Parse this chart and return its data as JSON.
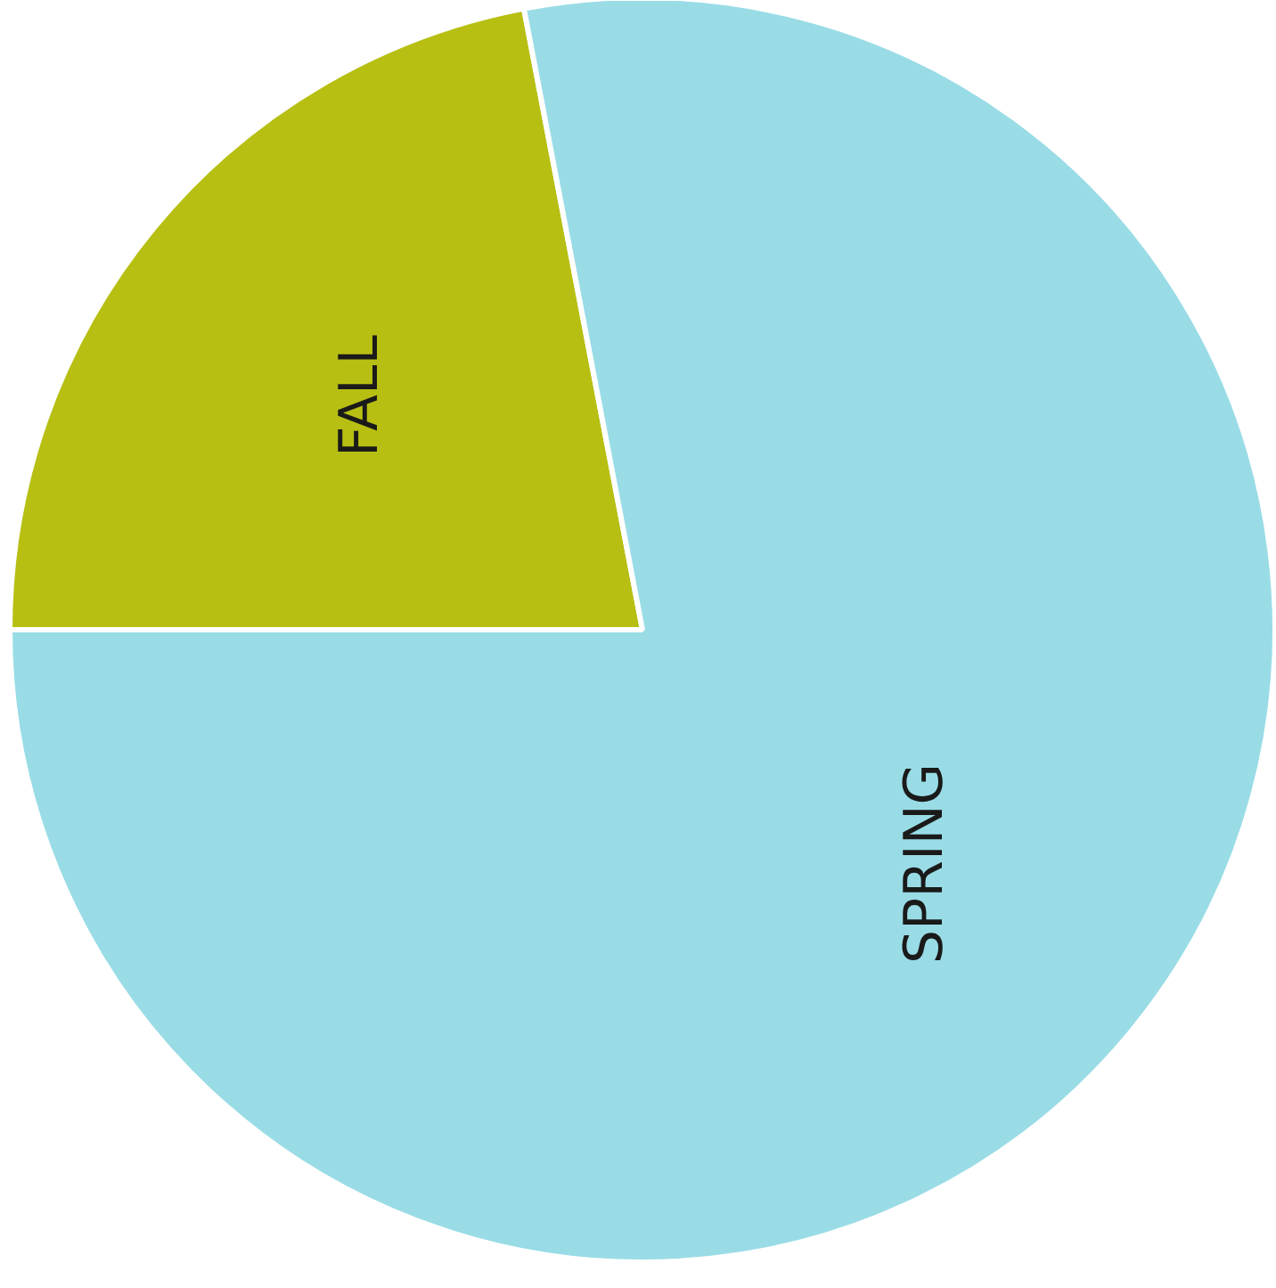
{
  "chart_data": {
    "type": "pie",
    "categories": [
      "FALL",
      "SPRING"
    ],
    "values": [
      22,
      78
    ],
    "colors": [
      "#b7bf12",
      "#99dce6"
    ]
  }
}
